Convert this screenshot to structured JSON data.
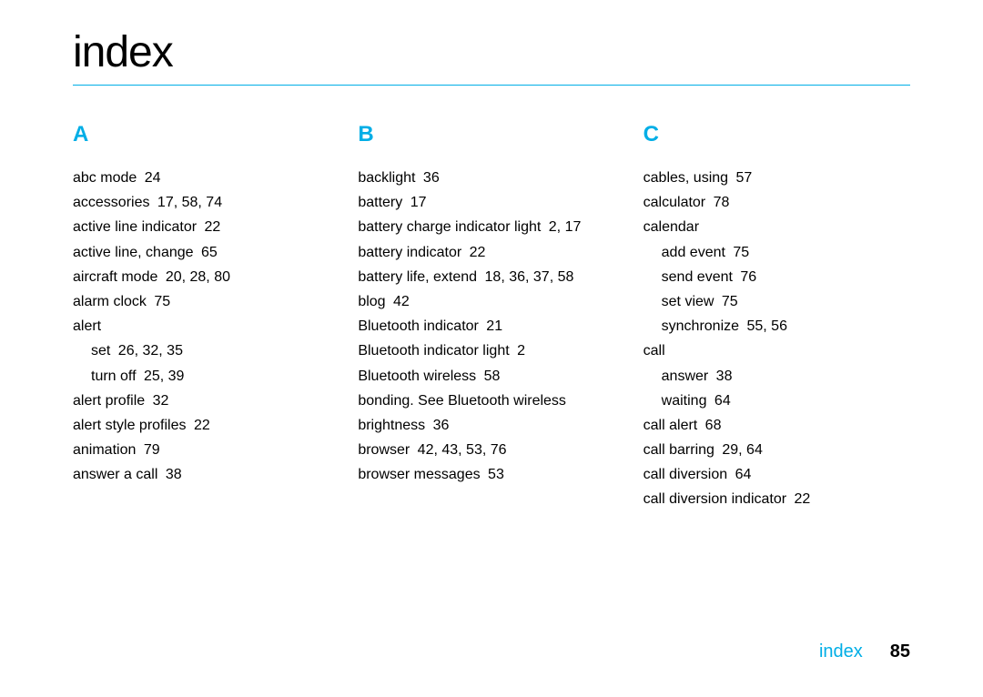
{
  "title": "index",
  "title_color": "#000000",
  "title_fontsize": 48,
  "accent_color": "#00aee6",
  "rule_color": "#00aee6",
  "section_letter_fontsize": 24,
  "entry_fontsize": 16,
  "entry_color": "#000000",
  "background_color": "#ffffff",
  "footer": {
    "label": "index",
    "label_color": "#00aee6",
    "page_number": "85",
    "page_number_color": "#000000",
    "fontsize": 20
  },
  "sections": [
    {
      "letter": "A",
      "entries": [
        {
          "term": "abc mode",
          "pages": "24",
          "indent": 0
        },
        {
          "term": "accessories",
          "pages": "17, 58, 74",
          "indent": 0
        },
        {
          "term": "active line indicator",
          "pages": "22",
          "indent": 0
        },
        {
          "term": "active line, change",
          "pages": "65",
          "indent": 0
        },
        {
          "term": "aircraft mode",
          "pages": "20, 28, 80",
          "indent": 0
        },
        {
          "term": "alarm clock",
          "pages": "75",
          "indent": 0
        },
        {
          "term": "alert",
          "pages": "",
          "indent": 0
        },
        {
          "term": "set",
          "pages": "26, 32, 35",
          "indent": 1
        },
        {
          "term": "turn off",
          "pages": "25, 39",
          "indent": 1
        },
        {
          "term": "alert profile",
          "pages": "32",
          "indent": 0
        },
        {
          "term": "alert style profiles",
          "pages": "22",
          "indent": 0
        },
        {
          "term": "animation",
          "pages": "79",
          "indent": 0
        },
        {
          "term": "answer a call",
          "pages": "38",
          "indent": 0
        }
      ]
    },
    {
      "letter": "B",
      "entries": [
        {
          "term": "backlight",
          "pages": "36",
          "indent": 0
        },
        {
          "term": "battery",
          "pages": "17",
          "indent": 0
        },
        {
          "term": "battery charge indicator light",
          "pages": "2, 17",
          "indent": 0
        },
        {
          "term": "battery indicator",
          "pages": "22",
          "indent": 0
        },
        {
          "term": "battery life, extend",
          "pages": "18, 36, 37, 58",
          "indent": 0
        },
        {
          "term": "blog",
          "pages": "42",
          "indent": 0
        },
        {
          "term": "Bluetooth indicator",
          "pages": "21",
          "indent": 0
        },
        {
          "term": "Bluetooth indicator light",
          "pages": "2",
          "indent": 0
        },
        {
          "term": "Bluetooth wireless",
          "pages": "58",
          "indent": 0
        },
        {
          "term": "bonding. See Bluetooth wireless",
          "pages": "",
          "indent": 0
        },
        {
          "term": "brightness",
          "pages": "36",
          "indent": 0
        },
        {
          "term": "browser",
          "pages": "42, 43, 53, 76",
          "indent": 0
        },
        {
          "term": "browser messages",
          "pages": "53",
          "indent": 0
        }
      ]
    },
    {
      "letter": "C",
      "entries": [
        {
          "term": "cables, using",
          "pages": "57",
          "indent": 0
        },
        {
          "term": "calculator",
          "pages": "78",
          "indent": 0
        },
        {
          "term": "calendar",
          "pages": "",
          "indent": 0
        },
        {
          "term": "add event",
          "pages": "75",
          "indent": 1
        },
        {
          "term": "send event",
          "pages": "76",
          "indent": 1
        },
        {
          "term": "set view",
          "pages": "75",
          "indent": 1
        },
        {
          "term": "synchronize",
          "pages": "55, 56",
          "indent": 1
        },
        {
          "term": "call",
          "pages": "",
          "indent": 0
        },
        {
          "term": "answer",
          "pages": "38",
          "indent": 1
        },
        {
          "term": "waiting",
          "pages": "64",
          "indent": 1
        },
        {
          "term": "call alert",
          "pages": "68",
          "indent": 0
        },
        {
          "term": "call barring",
          "pages": "29, 64",
          "indent": 0
        },
        {
          "term": "call diversion",
          "pages": "64",
          "indent": 0
        },
        {
          "term": "call diversion indicator",
          "pages": "22",
          "indent": 0
        }
      ]
    }
  ]
}
